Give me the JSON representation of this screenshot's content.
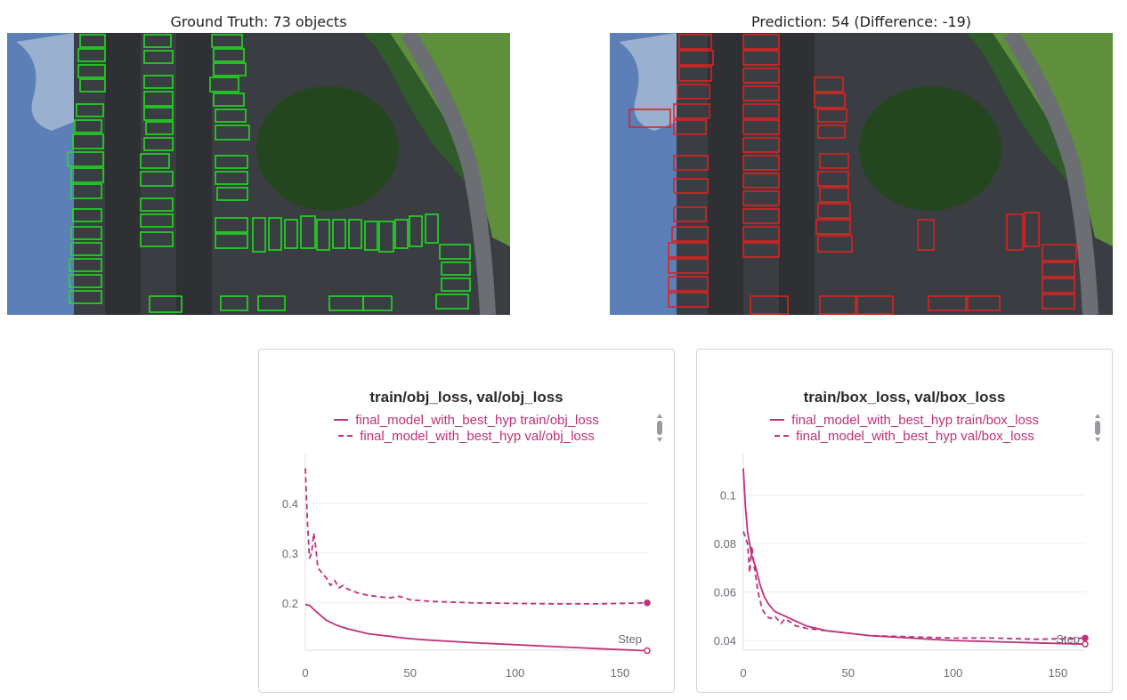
{
  "ground_truth_title": "Ground Truth: 73 objects",
  "prediction_title": "Prediction: 54 (Difference: -19)",
  "box_colors": {
    "ground_truth": "#22dd22",
    "prediction": "#dd2222"
  },
  "chart_data": [
    {
      "type": "line",
      "title": "train/obj_loss, val/obj_loss",
      "xlabel": "Step",
      "ylabel": "",
      "xlim": [
        0,
        163
      ],
      "ylim": [
        0.105,
        0.48
      ],
      "xticks": [
        0,
        50,
        100,
        150
      ],
      "yticks": [
        0.2,
        0.3,
        0.4
      ],
      "ytick_labels": [
        "0.2",
        "0.3",
        "0.4"
      ],
      "grid": true,
      "legend": "top-center",
      "color": "#c0317a",
      "series": [
        {
          "name": "final_model_with_best_hyp train/obj_loss",
          "style": "solid",
          "x": [
            0,
            2,
            5,
            10,
            15,
            20,
            30,
            40,
            50,
            60,
            80,
            100,
            120,
            140,
            163
          ],
          "y": [
            0.197,
            0.195,
            0.183,
            0.165,
            0.155,
            0.148,
            0.138,
            0.133,
            0.128,
            0.125,
            0.12,
            0.116,
            0.112,
            0.108,
            0.104
          ]
        },
        {
          "name": "final_model_with_best_hyp val/obj_loss",
          "style": "dashed",
          "x": [
            0,
            1,
            2,
            3,
            4,
            5,
            6,
            8,
            10,
            12,
            14,
            16,
            18,
            20,
            25,
            30,
            40,
            45,
            50,
            60,
            80,
            100,
            120,
            140,
            163
          ],
          "y": [
            0.47,
            0.36,
            0.29,
            0.3,
            0.34,
            0.31,
            0.27,
            0.26,
            0.25,
            0.235,
            0.245,
            0.23,
            0.235,
            0.228,
            0.22,
            0.215,
            0.21,
            0.213,
            0.206,
            0.203,
            0.2,
            0.199,
            0.198,
            0.198,
            0.2
          ]
        }
      ]
    },
    {
      "type": "line",
      "title": "train/box_loss, val/box_loss",
      "xlabel": "Step",
      "ylabel": "",
      "xlim": [
        0,
        163
      ],
      "ylim": [
        0.036,
        0.113
      ],
      "xticks": [
        0,
        50,
        100,
        150
      ],
      "yticks": [
        0.04,
        0.06,
        0.08,
        0.1
      ],
      "ytick_labels": [
        "0.04",
        "0.06",
        "0.08",
        "0.1"
      ],
      "grid": true,
      "legend": "top-center",
      "color": "#c0317a",
      "series": [
        {
          "name": "final_model_with_best_hyp train/box_loss",
          "style": "solid",
          "x": [
            0,
            1,
            2,
            4,
            6,
            8,
            10,
            12,
            15,
            20,
            25,
            30,
            40,
            50,
            60,
            80,
            100,
            120,
            140,
            163
          ],
          "y": [
            0.111,
            0.095,
            0.085,
            0.075,
            0.07,
            0.063,
            0.058,
            0.055,
            0.052,
            0.05,
            0.048,
            0.046,
            0.044,
            0.043,
            0.042,
            0.041,
            0.04,
            0.0395,
            0.039,
            0.0385
          ]
        },
        {
          "name": "final_model_with_best_hyp val/box_loss",
          "style": "dashed",
          "x": [
            0,
            2,
            3,
            4,
            5,
            6,
            7,
            9,
            11,
            13,
            15,
            18,
            20,
            25,
            30,
            40,
            50,
            60,
            80,
            100,
            120,
            140,
            163
          ],
          "y": [
            0.085,
            0.08,
            0.068,
            0.079,
            0.072,
            0.066,
            0.06,
            0.053,
            0.05,
            0.049,
            0.05,
            0.047,
            0.049,
            0.046,
            0.045,
            0.044,
            0.043,
            0.042,
            0.0415,
            0.041,
            0.041,
            0.0405,
            0.041
          ]
        }
      ]
    }
  ]
}
